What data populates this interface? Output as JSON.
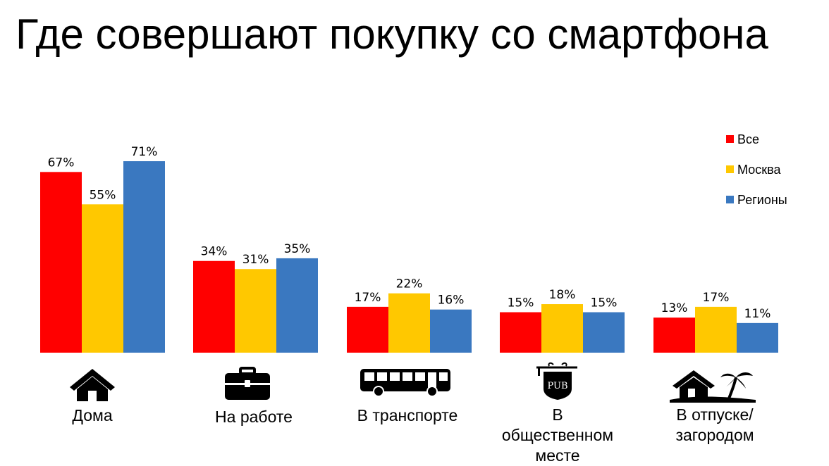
{
  "chart_data": {
    "type": "bar",
    "title": "Где совершают покупку со смартфона",
    "categories": [
      "Дома",
      "На работе",
      "В транспорте",
      "В\nобщественном\nместе",
      "В отпуске/\nзагородом"
    ],
    "category_icons": [
      "house-icon",
      "briefcase-icon",
      "bus-icon",
      "pub-sign-icon",
      "beach-house-icon"
    ],
    "series": [
      {
        "name": "Все",
        "values": [
          67,
          34,
          17,
          15,
          13
        ],
        "labels": [
          "67%",
          "34%",
          "17%",
          "15%",
          "13%"
        ],
        "color": "#ff0000"
      },
      {
        "name": "Москва",
        "values": [
          55,
          31,
          22,
          18,
          17
        ],
        "labels": [
          "55%",
          "31%",
          "22%",
          "18%",
          "17%"
        ],
        "color": "#ffc800"
      },
      {
        "name": "Регионы",
        "values": [
          71,
          35,
          16,
          15,
          11
        ],
        "labels": [
          "71%",
          "35%",
          "16%",
          "15%",
          "11%"
        ],
        "color": "#3a78c0"
      }
    ],
    "ylim": [
      0,
      71
    ],
    "legend_position": "top-right",
    "grid": false,
    "xlabel": "",
    "ylabel": ""
  }
}
